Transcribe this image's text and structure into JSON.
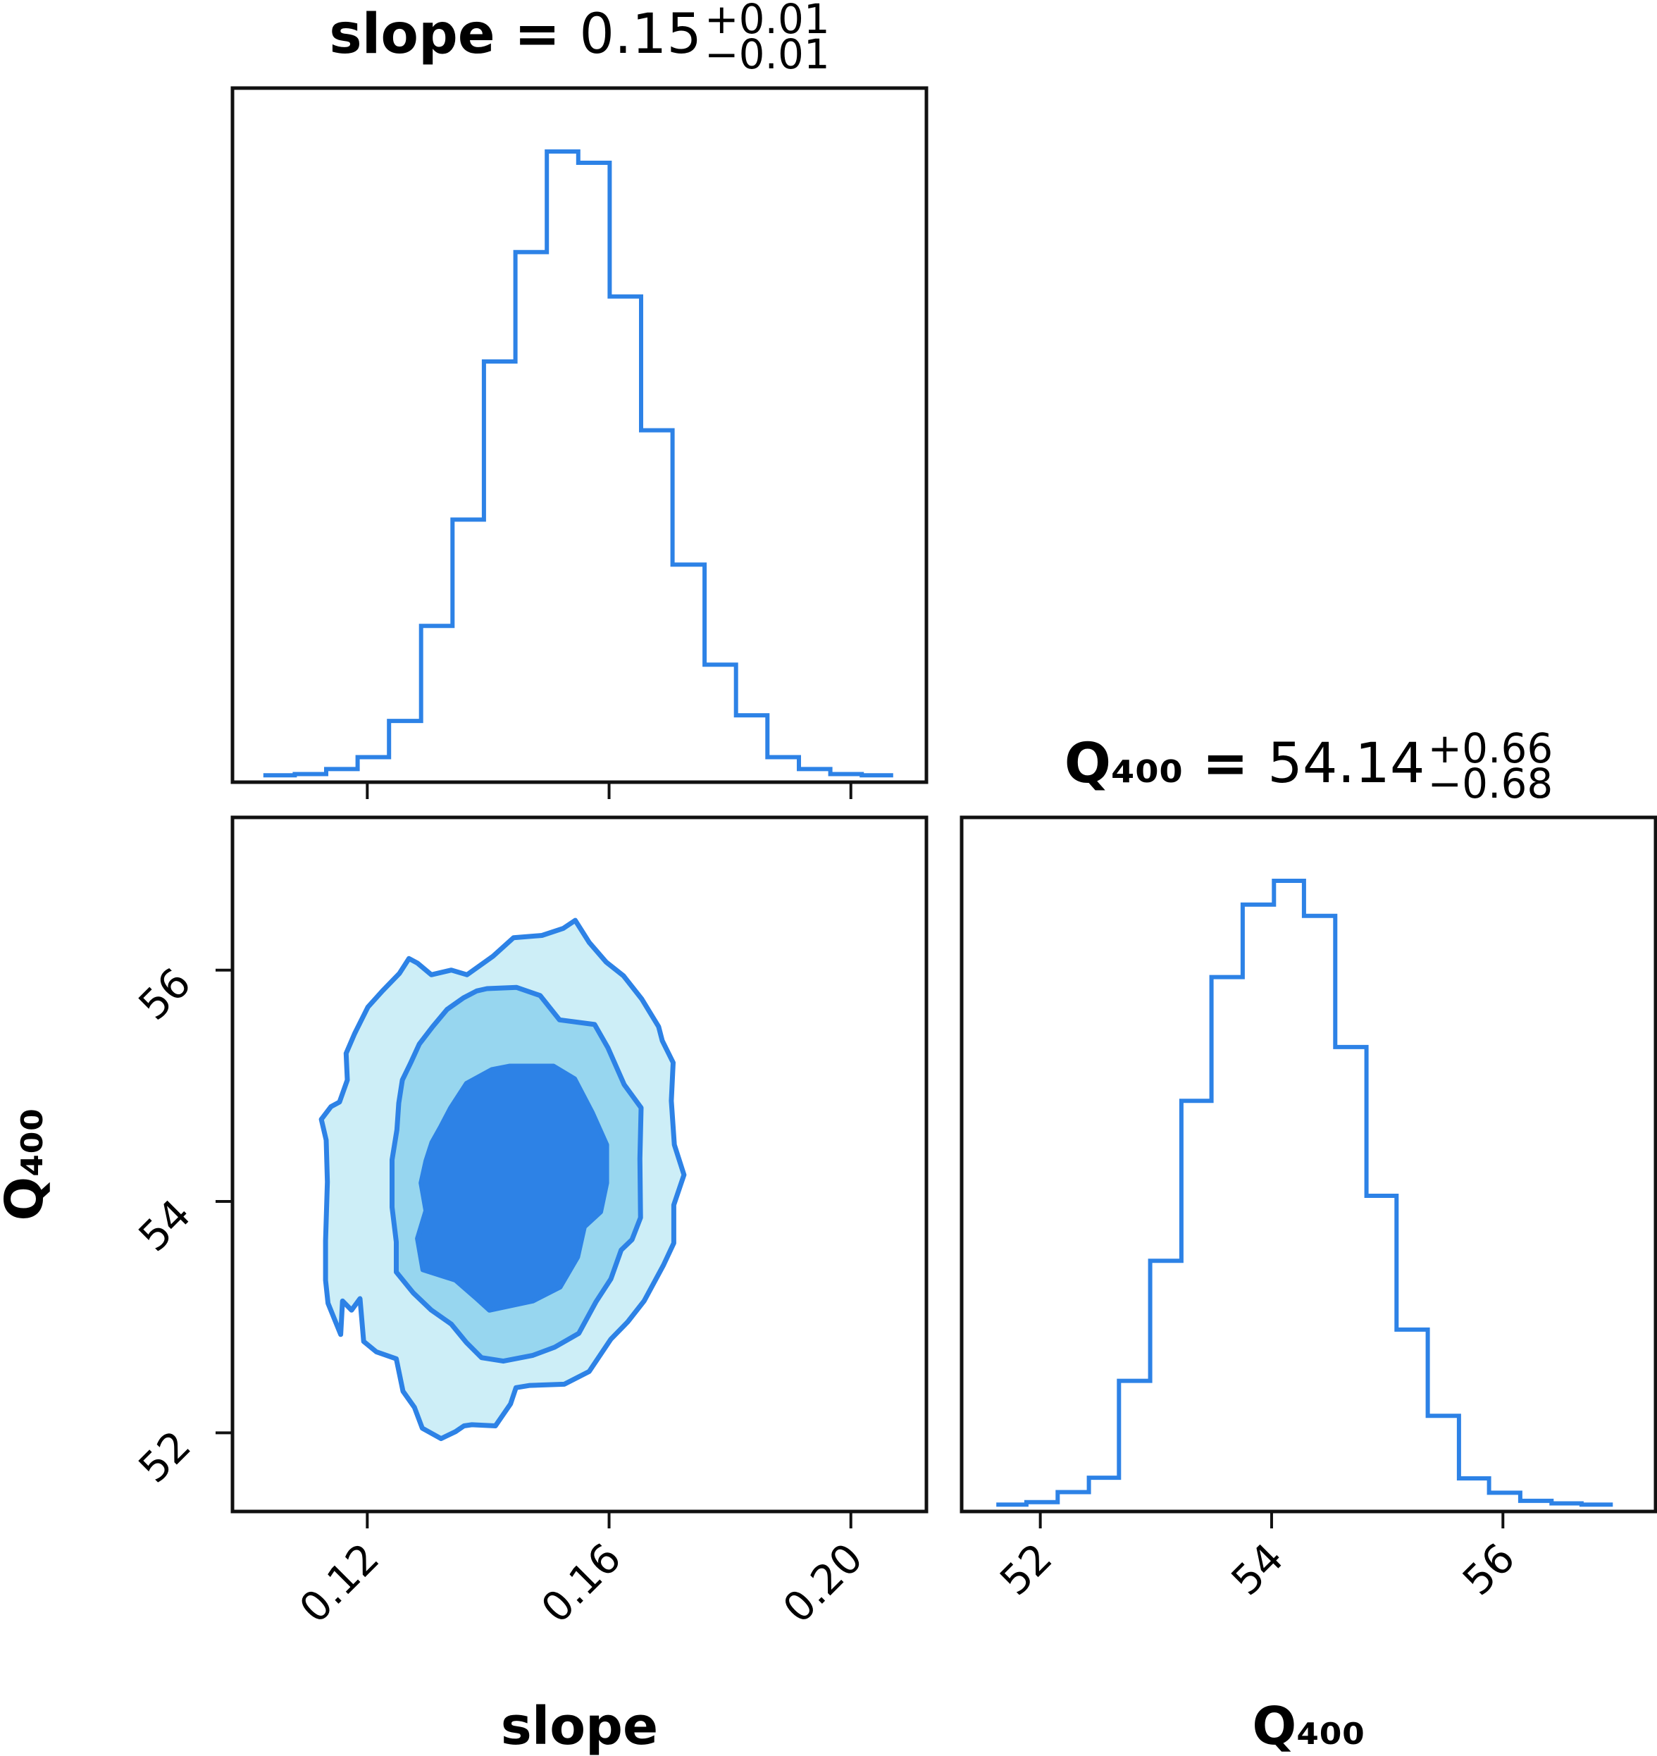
{
  "chart_data": [
    {
      "type": "histogram",
      "panel": "top-left",
      "title": {
        "param": "slope",
        "value": "0.15",
        "plus": "+0.01",
        "minus": "−0.01"
      },
      "x_range": [
        0.0977,
        0.2125
      ],
      "bins": [
        {
          "x0": 0.1028,
          "x1": 0.108,
          "count": 0.002
        },
        {
          "x0": 0.108,
          "x1": 0.1132,
          "count": 0.004
        },
        {
          "x0": 0.1132,
          "x1": 0.1184,
          "count": 0.012
        },
        {
          "x0": 0.1184,
          "x1": 0.1236,
          "count": 0.031
        },
        {
          "x0": 0.1236,
          "x1": 0.1289,
          "count": 0.089
        },
        {
          "x0": 0.1289,
          "x1": 0.1341,
          "count": 0.241
        },
        {
          "x0": 0.1341,
          "x1": 0.1393,
          "count": 0.411
        },
        {
          "x0": 0.1393,
          "x1": 0.1445,
          "count": 0.664
        },
        {
          "x0": 0.1445,
          "x1": 0.1497,
          "count": 0.839
        },
        {
          "x0": 0.1497,
          "x1": 0.1549,
          "count": 1.0
        },
        {
          "x0": 0.1549,
          "x1": 0.1601,
          "count": 0.982
        },
        {
          "x0": 0.1601,
          "x1": 0.1653,
          "count": 0.768
        },
        {
          "x0": 0.1653,
          "x1": 0.1705,
          "count": 0.554
        },
        {
          "x0": 0.1705,
          "x1": 0.1758,
          "count": 0.339
        },
        {
          "x0": 0.1758,
          "x1": 0.181,
          "count": 0.179
        },
        {
          "x0": 0.181,
          "x1": 0.1862,
          "count": 0.098
        },
        {
          "x0": 0.1862,
          "x1": 0.1914,
          "count": 0.031
        },
        {
          "x0": 0.1914,
          "x1": 0.1966,
          "count": 0.012
        },
        {
          "x0": 0.1966,
          "x1": 0.2018,
          "count": 0.004
        },
        {
          "x0": 0.2018,
          "x1": 0.207,
          "count": 0.002
        }
      ],
      "x_ticks": [
        0.12,
        0.16,
        0.2
      ]
    },
    {
      "type": "contour",
      "panel": "bottom-left",
      "xlabel": "slope",
      "ylabel": "Q₄₀₀",
      "x_range": [
        0.0977,
        0.2125
      ],
      "y_range": [
        51.32,
        57.32
      ],
      "x_ticks": [
        "0.12",
        "0.16",
        "0.20"
      ],
      "y_ticks": [
        "52",
        "54",
        "56"
      ],
      "levels": [
        {
          "name": "outer",
          "fill": "#cdeef7",
          "points": [
            [
              0.1156,
              52.85
            ],
            [
              0.1159,
              53.14
            ],
            [
              0.1174,
              53.06
            ],
            [
              0.1188,
              53.16
            ],
            [
              0.1194,
              52.79
            ],
            [
              0.1215,
              52.7
            ],
            [
              0.1248,
              52.64
            ],
            [
              0.1259,
              52.36
            ],
            [
              0.1278,
              52.22
            ],
            [
              0.1291,
              52.04
            ],
            [
              0.1322,
              51.95
            ],
            [
              0.1346,
              52.01
            ],
            [
              0.136,
              52.06
            ],
            [
              0.1373,
              52.07
            ],
            [
              0.1412,
              52.06
            ],
            [
              0.1437,
              52.25
            ],
            [
              0.1446,
              52.39
            ],
            [
              0.1469,
              52.41
            ],
            [
              0.1526,
              52.42
            ],
            [
              0.1567,
              52.53
            ],
            [
              0.1603,
              52.81
            ],
            [
              0.1631,
              52.96
            ],
            [
              0.1658,
              53.14
            ],
            [
              0.169,
              53.45
            ],
            [
              0.1707,
              53.64
            ],
            [
              0.1707,
              53.97
            ],
            [
              0.1724,
              54.23
            ],
            [
              0.1708,
              54.49
            ],
            [
              0.1703,
              54.87
            ],
            [
              0.1706,
              55.2
            ],
            [
              0.1688,
              55.39
            ],
            [
              0.1682,
              55.51
            ],
            [
              0.1654,
              55.75
            ],
            [
              0.1624,
              55.95
            ],
            [
              0.1595,
              56.07
            ],
            [
              0.1567,
              56.24
            ],
            [
              0.1544,
              56.43
            ],
            [
              0.1524,
              56.36
            ],
            [
              0.1489,
              56.3
            ],
            [
              0.1442,
              56.28
            ],
            [
              0.1408,
              56.12
            ],
            [
              0.1365,
              55.96
            ],
            [
              0.1339,
              56.0
            ],
            [
              0.1306,
              55.96
            ],
            [
              0.1283,
              56.06
            ],
            [
              0.1269,
              56.1
            ],
            [
              0.1253,
              55.97
            ],
            [
              0.1225,
              55.82
            ],
            [
              0.1201,
              55.68
            ],
            [
              0.1179,
              55.45
            ],
            [
              0.1165,
              55.28
            ],
            [
              0.1167,
              55.05
            ],
            [
              0.1154,
              54.86
            ],
            [
              0.114,
              54.82
            ],
            [
              0.1124,
              54.71
            ],
            [
              0.1132,
              54.53
            ],
            [
              0.1134,
              54.17
            ],
            [
              0.1131,
              53.66
            ],
            [
              0.1131,
              53.32
            ],
            [
              0.1135,
              53.12
            ],
            [
              0.1156,
              52.85
            ]
          ]
        },
        {
          "name": "middle",
          "fill": "#97d6ef",
          "points": [
            [
              0.1248,
              53.39
            ],
            [
              0.1276,
              53.21
            ],
            [
              0.1306,
              53.06
            ],
            [
              0.1339,
              52.94
            ],
            [
              0.1364,
              52.78
            ],
            [
              0.1389,
              52.65
            ],
            [
              0.1425,
              52.62
            ],
            [
              0.1474,
              52.67
            ],
            [
              0.151,
              52.74
            ],
            [
              0.155,
              52.86
            ],
            [
              0.1578,
              53.13
            ],
            [
              0.1603,
              53.33
            ],
            [
              0.162,
              53.58
            ],
            [
              0.1638,
              53.67
            ],
            [
              0.1652,
              53.86
            ],
            [
              0.1651,
              54.37
            ],
            [
              0.1653,
              54.81
            ],
            [
              0.1625,
              55.01
            ],
            [
              0.1598,
              55.33
            ],
            [
              0.1576,
              55.53
            ],
            [
              0.1518,
              55.57
            ],
            [
              0.1486,
              55.78
            ],
            [
              0.1447,
              55.85
            ],
            [
              0.1398,
              55.84
            ],
            [
              0.1381,
              55.82
            ],
            [
              0.1359,
              55.76
            ],
            [
              0.1332,
              55.66
            ],
            [
              0.1308,
              55.51
            ],
            [
              0.1286,
              55.36
            ],
            [
              0.1272,
              55.2
            ],
            [
              0.1258,
              55.05
            ],
            [
              0.1252,
              54.85
            ],
            [
              0.1249,
              54.62
            ],
            [
              0.1241,
              54.36
            ],
            [
              0.1241,
              53.95
            ],
            [
              0.1248,
              53.65
            ],
            [
              0.1248,
              53.39
            ]
          ]
        },
        {
          "name": "inner",
          "fill": "#2d82e6",
          "points": [
            [
              0.1283,
              53.68
            ],
            [
              0.1292,
              53.41
            ],
            [
              0.1346,
              53.32
            ],
            [
              0.1379,
              53.17
            ],
            [
              0.1402,
              53.06
            ],
            [
              0.1474,
              53.14
            ],
            [
              0.1519,
              53.26
            ],
            [
              0.1548,
              53.52
            ],
            [
              0.1559,
              53.78
            ],
            [
              0.1586,
              53.91
            ],
            [
              0.1596,
              54.16
            ],
            [
              0.1596,
              54.49
            ],
            [
              0.1572,
              54.77
            ],
            [
              0.1543,
              55.06
            ],
            [
              0.1508,
              55.17
            ],
            [
              0.1436,
              55.17
            ],
            [
              0.1406,
              55.14
            ],
            [
              0.1364,
              55.02
            ],
            [
              0.1338,
              54.81
            ],
            [
              0.1322,
              54.65
            ],
            [
              0.1307,
              54.51
            ],
            [
              0.1297,
              54.35
            ],
            [
              0.1289,
              54.16
            ],
            [
              0.1297,
              53.92
            ],
            [
              0.1283,
              53.68
            ]
          ]
        }
      ]
    },
    {
      "type": "histogram",
      "panel": "bottom-right",
      "title": {
        "param": "Q₄₀₀",
        "value": "54.14",
        "plus": "+0.66",
        "minus": "−0.68"
      },
      "xlabel": "Q₄₀₀",
      "x_range": [
        51.32,
        57.32
      ],
      "bins": [
        {
          "x0": 51.62,
          "x1": 51.88,
          "count": 0.002
        },
        {
          "x0": 51.88,
          "x1": 52.15,
          "count": 0.006
        },
        {
          "x0": 52.15,
          "x1": 52.42,
          "count": 0.022
        },
        {
          "x0": 52.42,
          "x1": 52.68,
          "count": 0.045
        },
        {
          "x0": 52.68,
          "x1": 52.95,
          "count": 0.2
        },
        {
          "x0": 52.95,
          "x1": 53.22,
          "count": 0.392
        },
        {
          "x0": 53.22,
          "x1": 53.48,
          "count": 0.648
        },
        {
          "x0": 53.48,
          "x1": 53.75,
          "count": 0.846
        },
        {
          "x0": 53.75,
          "x1": 54.02,
          "count": 0.962
        },
        {
          "x0": 54.02,
          "x1": 54.28,
          "count": 1.0
        },
        {
          "x0": 54.28,
          "x1": 54.55,
          "count": 0.944
        },
        {
          "x0": 54.55,
          "x1": 54.82,
          "count": 0.734
        },
        {
          "x0": 54.82,
          "x1": 55.08,
          "count": 0.496
        },
        {
          "x0": 55.08,
          "x1": 55.35,
          "count": 0.282
        },
        {
          "x0": 55.35,
          "x1": 55.62,
          "count": 0.144
        },
        {
          "x0": 55.62,
          "x1": 55.88,
          "count": 0.044
        },
        {
          "x0": 55.88,
          "x1": 56.15,
          "count": 0.021
        },
        {
          "x0": 56.15,
          "x1": 56.42,
          "count": 0.008
        },
        {
          "x0": 56.42,
          "x1": 56.68,
          "count": 0.004
        },
        {
          "x0": 56.68,
          "x1": 56.95,
          "count": 0.002
        }
      ],
      "x_ticks": [
        "52",
        "54",
        "56"
      ]
    }
  ]
}
